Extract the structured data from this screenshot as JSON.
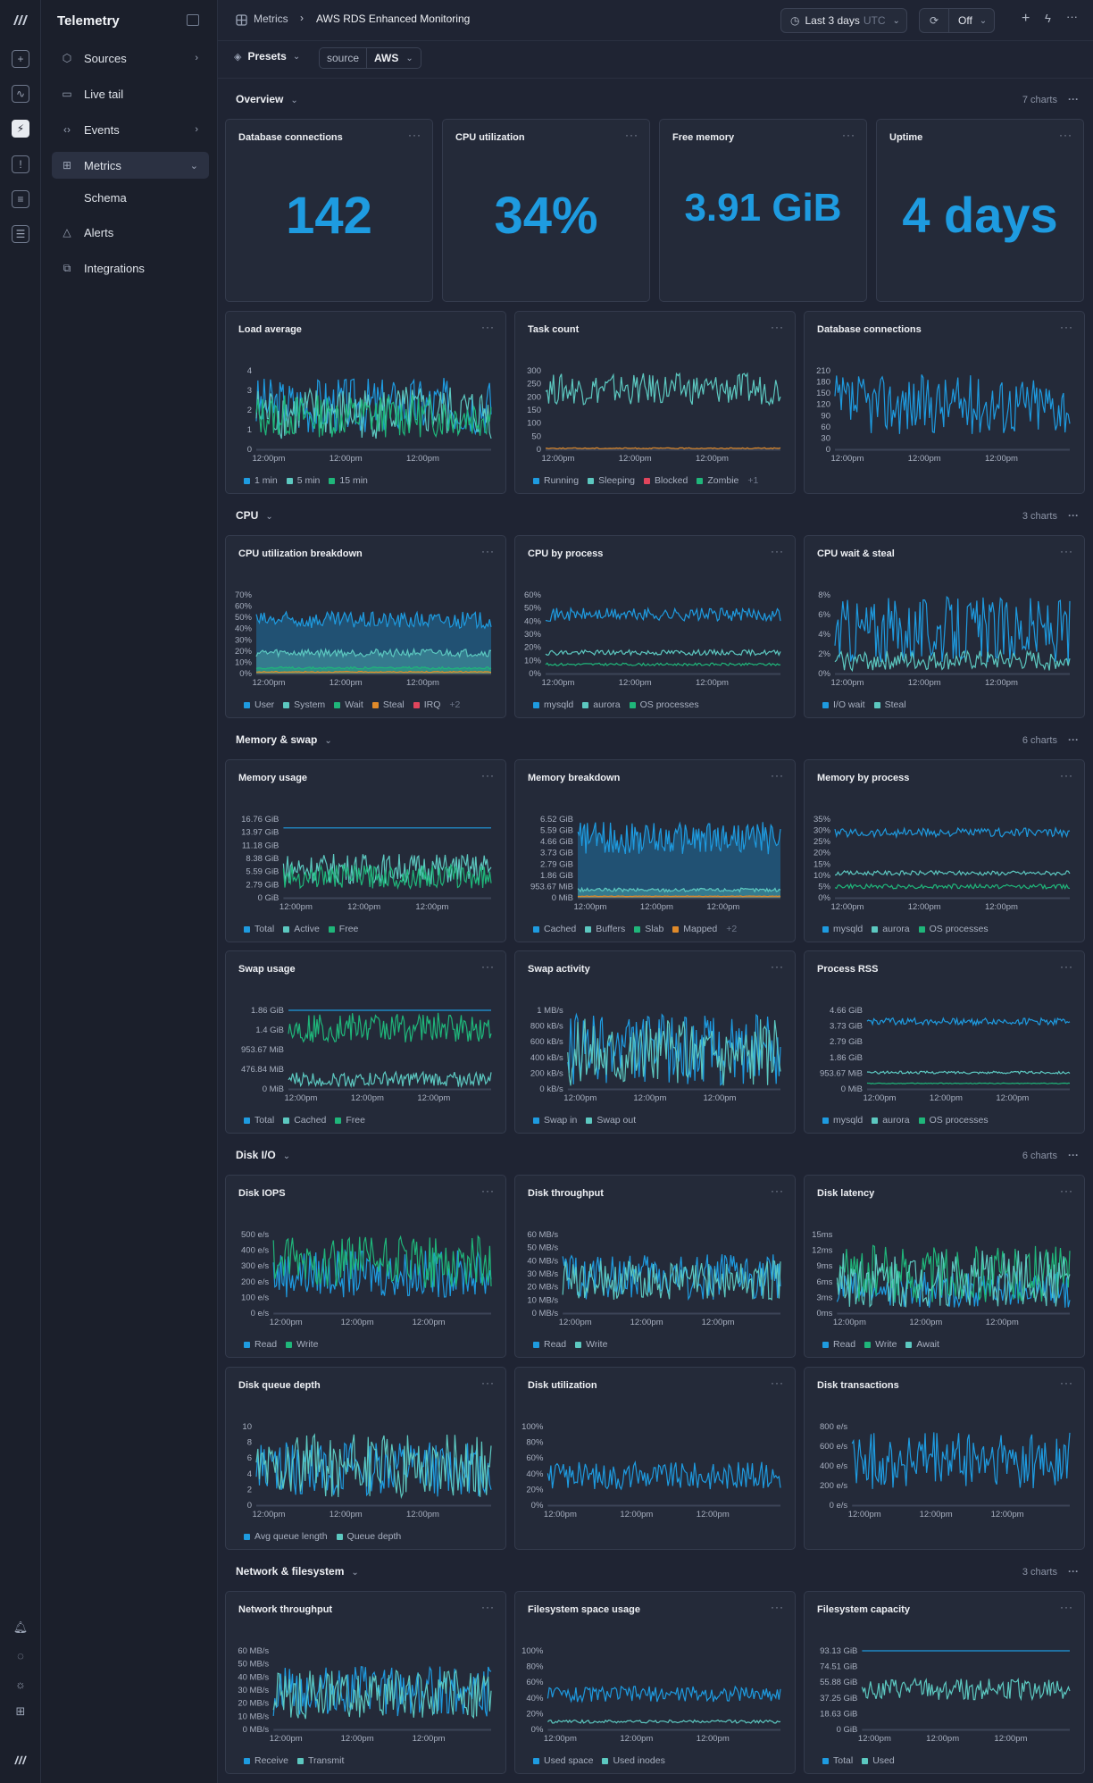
{
  "app": {
    "title": "Telemetry"
  },
  "sidebar": {
    "items": [
      {
        "label": "Sources",
        "icon": "cube-icon",
        "chev": "›"
      },
      {
        "label": "Live tail",
        "icon": "terminal-icon",
        "chev": ""
      },
      {
        "label": "Events",
        "icon": "code-icon",
        "chev": "›"
      },
      {
        "label": "Metrics",
        "icon": "grid-icon",
        "chev": "⌄",
        "active": true
      },
      {
        "label": "Schema",
        "icon": "",
        "chev": "",
        "sub": true
      },
      {
        "label": "Alerts",
        "icon": "alert-triangle-icon",
        "chev": ""
      },
      {
        "label": "Integrations",
        "icon": "puzzle-icon",
        "chev": ""
      }
    ]
  },
  "breadcrumb": {
    "parent": "Metrics",
    "current": "AWS RDS Enhanced Monitoring"
  },
  "toolbar": {
    "time_range": "Last 3 days",
    "timezone": "UTC",
    "refresh": "Off"
  },
  "filters": {
    "presets": "Presets",
    "source_key": "source",
    "source_value": "AWS"
  },
  "colors": {
    "blue": "#1e9be0",
    "teal": "#5cc8c0",
    "green": "#1fb67a",
    "red": "#e0455c",
    "orange": "#e08a2a",
    "cyan": "#3fb3d8",
    "bg": "#1f2433"
  },
  "sections": [
    {
      "name": "Overview",
      "count": "7 charts"
    },
    {
      "name": "CPU",
      "count": "3 charts"
    },
    {
      "name": "Memory & swap",
      "count": "6 charts"
    },
    {
      "name": "Disk I/O",
      "count": "6 charts"
    },
    {
      "name": "Network & filesystem",
      "count": "3 charts"
    }
  ],
  "stats": [
    {
      "title": "Database connections",
      "value": "142"
    },
    {
      "title": "CPU utilization",
      "value": "34%"
    },
    {
      "title": "Free memory",
      "value": "3.91 GiB"
    },
    {
      "title": "Uptime",
      "value": "4 days"
    }
  ],
  "chart_data": [
    {
      "title": "Load average",
      "type": "line",
      "yticks": [
        "4",
        "3",
        "2",
        "1",
        "0"
      ],
      "ylim": [
        0,
        4
      ],
      "xticks": [
        "12:00pm",
        "12:00pm",
        "12:00pm"
      ],
      "legend": [
        "1 min",
        "5 min",
        "15 min"
      ],
      "series": [
        {
          "name": "1 min",
          "color": "#1e9be0",
          "min": 0.8,
          "max": 3.7
        },
        {
          "name": "5 min",
          "color": "#5cc8c0",
          "min": 0.5,
          "max": 3.2
        },
        {
          "name": "15 min",
          "color": "#1fb67a",
          "min": 0.6,
          "max": 2.8
        }
      ]
    },
    {
      "title": "Task count",
      "type": "line",
      "yticks": [
        "300",
        "250",
        "200",
        "150",
        "100",
        "50",
        "0"
      ],
      "ylim": [
        0,
        300
      ],
      "xticks": [
        "12:00pm",
        "12:00pm",
        "12:00pm"
      ],
      "legend": [
        "Running",
        "Sleeping",
        "Blocked",
        "Zombie"
      ],
      "more": "+1",
      "series": [
        {
          "name": "Sleeping",
          "color": "#5cc8c0",
          "min": 170,
          "max": 290
        },
        {
          "name": "Running",
          "color": "#e08a2a",
          "min": 2,
          "max": 6
        }
      ]
    },
    {
      "title": "Database connections",
      "type": "line",
      "yticks": [
        "210",
        "180",
        "150",
        "120",
        "90",
        "60",
        "30",
        "0"
      ],
      "ylim": [
        0,
        210
      ],
      "xticks": [
        "12:00pm",
        "12:00pm",
        "12:00pm"
      ],
      "legend": [],
      "series": [
        {
          "name": "",
          "color": "#1e9be0",
          "min": 40,
          "max": 200
        }
      ]
    },
    {
      "title": "CPU utilization breakdown",
      "type": "area",
      "yticks": [
        "70%",
        "60%",
        "50%",
        "40%",
        "30%",
        "20%",
        "10%",
        "0%"
      ],
      "ylim": [
        0,
        70
      ],
      "xticks": [
        "12:00pm",
        "12:00pm",
        "12:00pm"
      ],
      "legend": [
        "User",
        "System",
        "Wait",
        "Steal",
        "IRQ"
      ],
      "more": "+2",
      "series": [
        {
          "name": "User",
          "color": "#1e9be0",
          "min": 40,
          "max": 55
        },
        {
          "name": "System",
          "color": "#5cc8c0",
          "min": 15,
          "max": 22
        },
        {
          "name": "Wait",
          "color": "#1fb67a",
          "min": 4,
          "max": 6
        },
        {
          "name": "Steal",
          "color": "#e08a2a",
          "min": 1,
          "max": 2
        }
      ]
    },
    {
      "title": "CPU by process",
      "type": "line",
      "yticks": [
        "60%",
        "50%",
        "40%",
        "30%",
        "20%",
        "10%",
        "0%"
      ],
      "ylim": [
        0,
        60
      ],
      "xticks": [
        "12:00pm",
        "12:00pm",
        "12:00pm"
      ],
      "legend": [
        "mysqld",
        "aurora",
        "OS processes"
      ],
      "series": [
        {
          "name": "mysqld",
          "color": "#1e9be0",
          "min": 40,
          "max": 50
        },
        {
          "name": "aurora",
          "color": "#5cc8c0",
          "min": 14,
          "max": 18
        },
        {
          "name": "OS processes",
          "color": "#1fb67a",
          "min": 6,
          "max": 8
        }
      ]
    },
    {
      "title": "CPU wait & steal",
      "type": "line",
      "yticks": [
        "8%",
        "6%",
        "4%",
        "2%",
        "0%"
      ],
      "ylim": [
        0,
        8
      ],
      "xticks": [
        "12:00pm",
        "12:00pm",
        "12:00pm"
      ],
      "legend": [
        "I/O wait",
        "Steal"
      ],
      "series": [
        {
          "name": "I/O wait",
          "color": "#1e9be0",
          "min": 1,
          "max": 7.8
        },
        {
          "name": "Steal",
          "color": "#5cc8c0",
          "min": 0.3,
          "max": 2.3
        }
      ]
    },
    {
      "title": "Memory usage",
      "type": "line",
      "yticks": [
        "16.76 GiB",
        "13.97 GiB",
        "11.18 GiB",
        "8.38 GiB",
        "5.59 GiB",
        "2.79 GiB",
        "0 GiB"
      ],
      "ylim": [
        0,
        16.76
      ],
      "xticks": [
        "12:00pm",
        "12:00pm",
        "12:00pm"
      ],
      "legend": [
        "Total",
        "Active",
        "Free"
      ],
      "series": [
        {
          "name": "Total",
          "color": "#1e9be0",
          "min": 14.9,
          "max": 14.9
        },
        {
          "name": "Active",
          "color": "#5cc8c0",
          "min": 3,
          "max": 9.5
        },
        {
          "name": "Free",
          "color": "#1fb67a",
          "min": 2,
          "max": 7
        }
      ]
    },
    {
      "title": "Memory breakdown",
      "type": "area",
      "yticks": [
        "6.52 GiB",
        "5.59 GiB",
        "4.66 GiB",
        "3.73 GiB",
        "2.79 GiB",
        "1.86 GiB",
        "953.67 MiB",
        "0 MiB"
      ],
      "ylim": [
        0,
        6.52
      ],
      "xticks": [
        "12:00pm",
        "12:00pm",
        "12:00pm"
      ],
      "legend": [
        "Cached",
        "Buffers",
        "Slab",
        "Mapped"
      ],
      "more": "+2",
      "series": [
        {
          "name": "Cached",
          "color": "#1e9be0",
          "min": 3.6,
          "max": 6.3
        },
        {
          "name": "Buffers",
          "color": "#5cc8c0",
          "min": 0.5,
          "max": 0.8
        },
        {
          "name": "Mapped",
          "color": "#e08a2a",
          "min": 0.1,
          "max": 0.15
        }
      ]
    },
    {
      "title": "Memory by process",
      "type": "line",
      "yticks": [
        "35%",
        "30%",
        "25%",
        "20%",
        "15%",
        "10%",
        "5%",
        "0%"
      ],
      "ylim": [
        0,
        35
      ],
      "xticks": [
        "12:00pm",
        "12:00pm",
        "12:00pm"
      ],
      "legend": [
        "mysqld",
        "aurora",
        "OS processes"
      ],
      "series": [
        {
          "name": "mysqld",
          "color": "#1e9be0",
          "min": 27,
          "max": 31
        },
        {
          "name": "aurora",
          "color": "#5cc8c0",
          "min": 10,
          "max": 12
        },
        {
          "name": "OS processes",
          "color": "#1fb67a",
          "min": 4,
          "max": 6
        }
      ]
    },
    {
      "title": "Swap usage",
      "type": "line",
      "yticks": [
        "1.86 GiB",
        "1.4 GiB",
        "953.67 MiB",
        "476.84 MiB",
        "0 MiB"
      ],
      "ylim": [
        0,
        1.86
      ],
      "xticks": [
        "12:00pm",
        "12:00pm",
        "12:00pm"
      ],
      "legend": [
        "Total",
        "Cached",
        "Free"
      ],
      "series": [
        {
          "name": "Total",
          "color": "#1e9be0",
          "min": 1.86,
          "max": 1.86
        },
        {
          "name": "Free",
          "color": "#1fb67a",
          "min": 1.1,
          "max": 1.8
        },
        {
          "name": "Cached",
          "color": "#5cc8c0",
          "min": 0.05,
          "max": 0.4
        }
      ]
    },
    {
      "title": "Swap activity",
      "type": "line",
      "yticks": [
        "1 MB/s",
        "800 kB/s",
        "600 kB/s",
        "400 kB/s",
        "200 kB/s",
        "0 kB/s"
      ],
      "ylim": [
        0,
        1000
      ],
      "xticks": [
        "12:00pm",
        "12:00pm",
        "12:00pm"
      ],
      "legend": [
        "Swap in",
        "Swap out"
      ],
      "series": [
        {
          "name": "Swap in",
          "color": "#1e9be0",
          "min": 50,
          "max": 950
        },
        {
          "name": "Swap out",
          "color": "#5cc8c0",
          "min": 30,
          "max": 900
        }
      ]
    },
    {
      "title": "Process RSS",
      "type": "line",
      "yticks": [
        "4.66 GiB",
        "3.73 GiB",
        "2.79 GiB",
        "1.86 GiB",
        "953.67 MiB",
        "0 MiB"
      ],
      "ylim": [
        0,
        4.66
      ],
      "xticks": [
        "12:00pm",
        "12:00pm",
        "12:00pm"
      ],
      "legend": [
        "mysqld",
        "aurora",
        "OS processes"
      ],
      "series": [
        {
          "name": "mysqld",
          "color": "#1e9be0",
          "min": 3.8,
          "max": 4.2
        },
        {
          "name": "aurora",
          "color": "#5cc8c0",
          "min": 0.9,
          "max": 1.05
        },
        {
          "name": "OS processes",
          "color": "#1fb67a",
          "min": 0.3,
          "max": 0.35
        }
      ]
    },
    {
      "title": "Disk IOPS",
      "type": "line",
      "yticks": [
        "500 e/s",
        "400 e/s",
        "300 e/s",
        "200 e/s",
        "100 e/s",
        "0 e/s"
      ],
      "ylim": [
        0,
        500
      ],
      "xticks": [
        "12:00pm",
        "12:00pm",
        "12:00pm"
      ],
      "legend": [
        "Read",
        "Write"
      ],
      "series": [
        {
          "name": "Read",
          "color": "#1e9be0",
          "min": 100,
          "max": 400
        },
        {
          "name": "Write",
          "color": "#1fb67a",
          "min": 150,
          "max": 490
        }
      ]
    },
    {
      "title": "Disk throughput",
      "type": "line",
      "yticks": [
        "60 MB/s",
        "50 MB/s",
        "40 MB/s",
        "30 MB/s",
        "20 MB/s",
        "10 MB/s",
        "0 MB/s"
      ],
      "ylim": [
        0,
        60
      ],
      "xticks": [
        "12:00pm",
        "12:00pm",
        "12:00pm"
      ],
      "legend": [
        "Read",
        "Write"
      ],
      "series": [
        {
          "name": "Read",
          "color": "#1e9be0",
          "min": 10,
          "max": 45
        },
        {
          "name": "Write",
          "color": "#5cc8c0",
          "min": 10,
          "max": 40
        }
      ]
    },
    {
      "title": "Disk latency",
      "type": "line",
      "yticks": [
        "15ms",
        "12ms",
        "9ms",
        "6ms",
        "3ms",
        "0ms"
      ],
      "ylim": [
        0,
        15
      ],
      "xticks": [
        "12:00pm",
        "12:00pm",
        "12:00pm"
      ],
      "legend": [
        "Read",
        "Write",
        "Await"
      ],
      "series": [
        {
          "name": "Read",
          "color": "#1e9be0",
          "min": 1,
          "max": 8
        },
        {
          "name": "Write",
          "color": "#1fb67a",
          "min": 2,
          "max": 13
        },
        {
          "name": "Await",
          "color": "#5cc8c0",
          "min": 1,
          "max": 12
        }
      ]
    },
    {
      "title": "Disk queue depth",
      "type": "line",
      "yticks": [
        "10",
        "8",
        "6",
        "4",
        "2",
        "0"
      ],
      "ylim": [
        0,
        10
      ],
      "xticks": [
        "12:00pm",
        "12:00pm",
        "12:00pm"
      ],
      "legend": [
        "Avg queue length",
        "Queue depth"
      ],
      "series": [
        {
          "name": "Avg queue length",
          "color": "#1e9be0",
          "min": 1,
          "max": 8
        },
        {
          "name": "Queue depth",
          "color": "#5cc8c0",
          "min": 1,
          "max": 9
        }
      ]
    },
    {
      "title": "Disk utilization",
      "type": "line",
      "yticks": [
        "100%",
        "80%",
        "60%",
        "40%",
        "20%",
        "0%"
      ],
      "ylim": [
        0,
        100
      ],
      "xticks": [
        "12:00pm",
        "12:00pm",
        "12:00pm"
      ],
      "legend": [],
      "series": [
        {
          "name": "",
          "color": "#1e9be0",
          "min": 20,
          "max": 55
        }
      ]
    },
    {
      "title": "Disk transactions",
      "type": "line",
      "yticks": [
        "800 e/s",
        "600 e/s",
        "400 e/s",
        "200 e/s",
        "0 e/s"
      ],
      "ylim": [
        0,
        800
      ],
      "xticks": [
        "12:00pm",
        "12:00pm",
        "12:00pm"
      ],
      "legend": [],
      "series": [
        {
          "name": "",
          "color": "#1e9be0",
          "min": 150,
          "max": 750
        }
      ]
    },
    {
      "title": "Network throughput",
      "type": "line",
      "yticks": [
        "60 MB/s",
        "50 MB/s",
        "40 MB/s",
        "30 MB/s",
        "20 MB/s",
        "10 MB/s",
        "0 MB/s"
      ],
      "ylim": [
        0,
        60
      ],
      "xticks": [
        "12:00pm",
        "12:00pm",
        "12:00pm"
      ],
      "legend": [
        "Receive",
        "Transmit"
      ],
      "series": [
        {
          "name": "Receive",
          "color": "#1e9be0",
          "min": 10,
          "max": 48
        },
        {
          "name": "Transmit",
          "color": "#5cc8c0",
          "min": 8,
          "max": 45
        }
      ]
    },
    {
      "title": "Filesystem space usage",
      "type": "line",
      "yticks": [
        "100%",
        "80%",
        "60%",
        "40%",
        "20%",
        "0%"
      ],
      "ylim": [
        0,
        100
      ],
      "xticks": [
        "12:00pm",
        "12:00pm",
        "12:00pm"
      ],
      "legend": [
        "Used space",
        "Used inodes"
      ],
      "series": [
        {
          "name": "Used space",
          "color": "#1e9be0",
          "min": 35,
          "max": 55
        },
        {
          "name": "Used inodes",
          "color": "#5cc8c0",
          "min": 8,
          "max": 12
        }
      ]
    },
    {
      "title": "Filesystem capacity",
      "type": "line",
      "yticks": [
        "93.13 GiB",
        "74.51 GiB",
        "55.88 GiB",
        "37.25 GiB",
        "18.63 GiB",
        "0 GiB"
      ],
      "ylim": [
        0,
        93.13
      ],
      "xticks": [
        "12:00pm",
        "12:00pm",
        "12:00pm"
      ],
      "legend": [
        "Total",
        "Used"
      ],
      "series": [
        {
          "name": "Total",
          "color": "#1e9be0",
          "min": 93.13,
          "max": 93.13
        },
        {
          "name": "Used",
          "color": "#5cc8c0",
          "min": 35,
          "max": 60
        }
      ]
    }
  ]
}
